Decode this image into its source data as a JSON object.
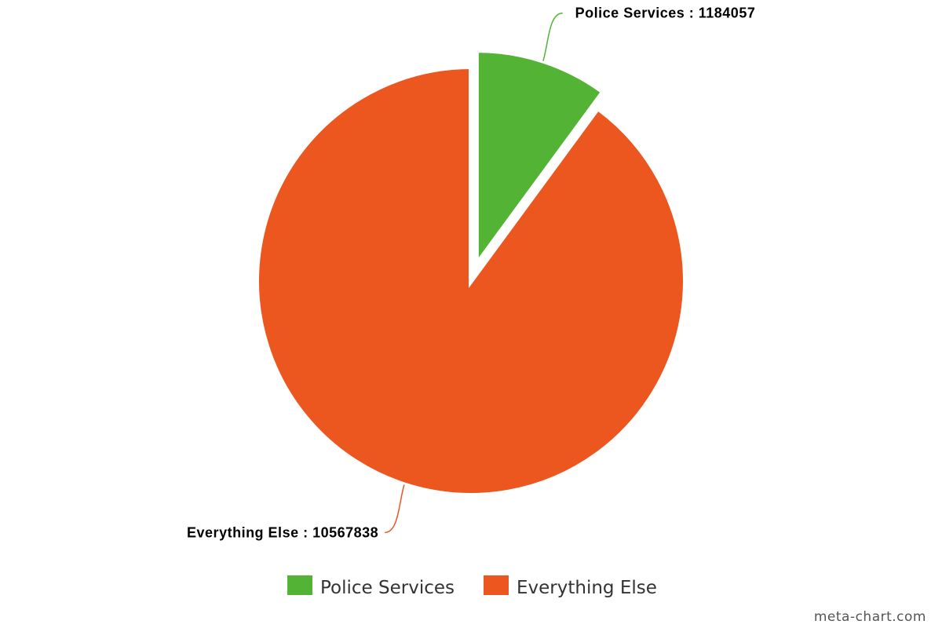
{
  "chart_data": {
    "type": "pie",
    "title": "",
    "slices": [
      {
        "name": "Police Services",
        "value": 1184057,
        "label": "Police Services : 1184057",
        "color": "#52b334",
        "exploded": true
      },
      {
        "name": "Everything Else",
        "value": 10567838,
        "label": "Everything Else : 10567838",
        "color": "#ec561f",
        "exploded": false
      }
    ],
    "legend": {
      "position": "bottom",
      "items": [
        "Police Services",
        "Everything Else"
      ]
    }
  },
  "credit": "meta-chart.com"
}
